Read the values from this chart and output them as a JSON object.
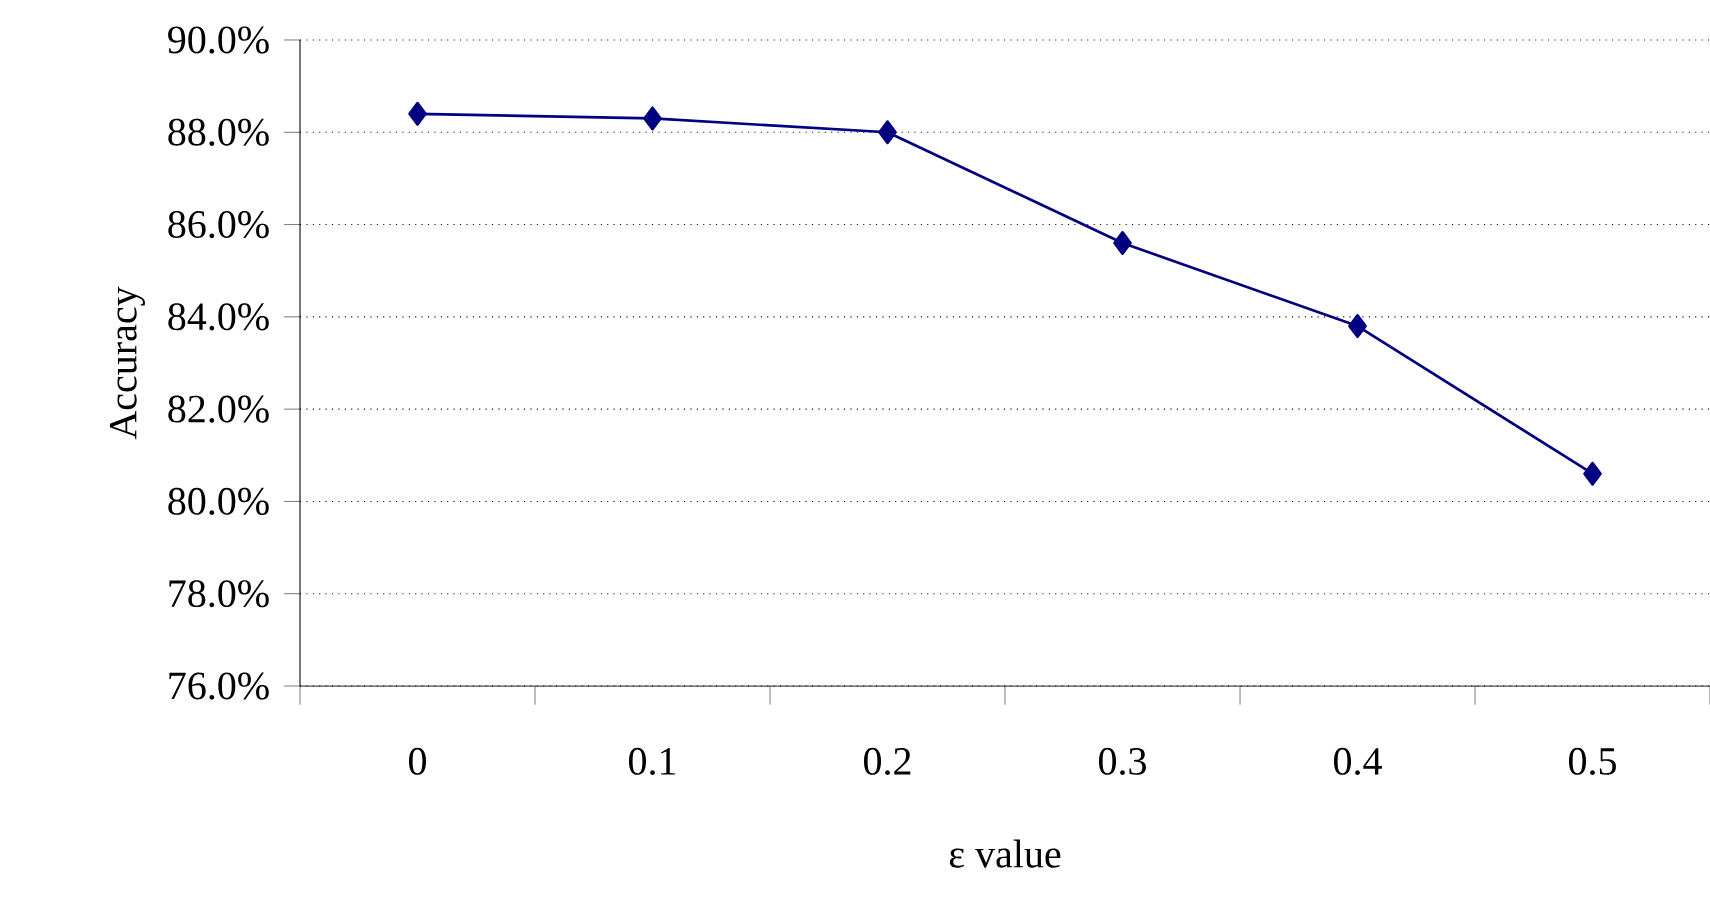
{
  "chart_data": {
    "type": "line",
    "xlabel": "ε value",
    "ylabel": "Accuracy",
    "categories": [
      "0",
      "0.1",
      "0.2",
      "0.3",
      "0.4",
      "0.5"
    ],
    "series": [
      {
        "color": "#000080",
        "values": [
          88.4,
          88.3,
          88.0,
          85.6,
          83.8,
          80.6
        ]
      }
    ],
    "ylim": [
      76,
      90
    ],
    "yticks": [
      {
        "value": 76,
        "label": "76.0%"
      },
      {
        "value": 78,
        "label": "78.0%"
      },
      {
        "value": 80,
        "label": "80.0%"
      },
      {
        "value": 82,
        "label": "82.0%"
      },
      {
        "value": 84,
        "label": "84.0%"
      },
      {
        "value": 86,
        "label": "86.0%"
      },
      {
        "value": 88,
        "label": "88.0%"
      },
      {
        "value": 90,
        "label": "90.0%"
      }
    ],
    "grid": "y",
    "marker": "diamond",
    "line_style": "solid"
  }
}
